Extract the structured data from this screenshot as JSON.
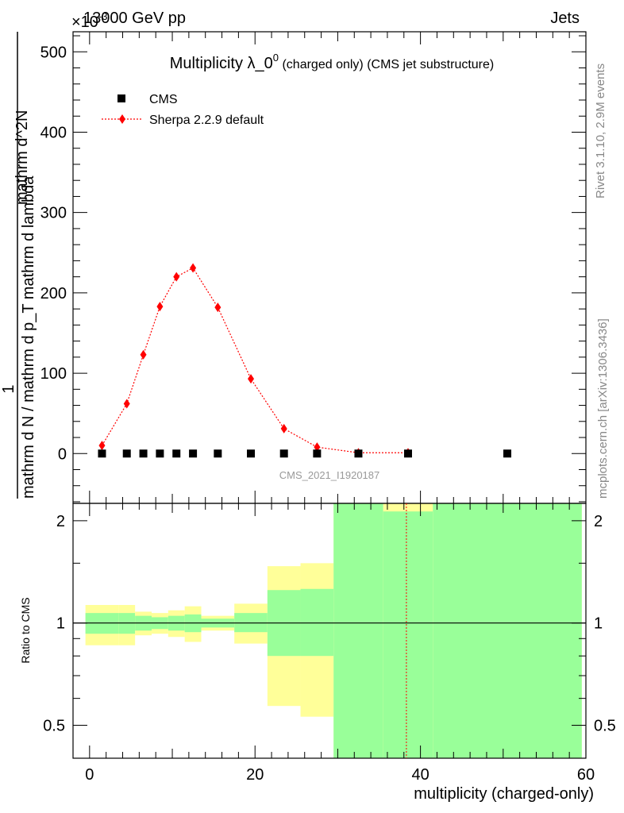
{
  "header": {
    "left": "13000 GeV pp",
    "right": "Jets",
    "exponent_label": "×10",
    "exponent_power": "-3"
  },
  "side_labels": {
    "rivet": "Rivet 3.1.10,  2.9M events",
    "mcplots": "mcplots.cern.ch [arXiv:1306.3436]"
  },
  "chart_data": [
    {
      "type": "scatter",
      "title": "Multiplicity λ_0",
      "title_superscript": "0",
      "title_suffix": " (charged only) (CMS jet substructure)",
      "ylabel_top": "1",
      "ylabel_denominator": "mathrm d N / mathrm d p_T mathrm d lambda",
      "ylabel_numerator": "mathrm d^2N",
      "watermark": "CMS_2021_I1920187",
      "xlim": [
        -2,
        60
      ],
      "ylim": [
        -62,
        525
      ],
      "yticks": [
        0,
        100,
        200,
        300,
        400,
        500
      ],
      "legend_position": "top-left",
      "series": [
        {
          "name": "CMS",
          "color": "#000000",
          "marker": "square",
          "x": [
            1.5,
            4.5,
            6.5,
            8.5,
            10.5,
            12.5,
            15.5,
            19.5,
            23.5,
            27.5,
            32.5,
            38.5,
            50.5
          ],
          "y": [
            0,
            0,
            0,
            0,
            0,
            0,
            0,
            0,
            0,
            0,
            0,
            0,
            0
          ]
        },
        {
          "name": "Sherpa 2.2.9 default",
          "color": "#ff0000",
          "marker": "diamond",
          "x": [
            1.5,
            4.5,
            6.5,
            8.5,
            10.5,
            12.5,
            15.5,
            19.5,
            23.5,
            27.5,
            32.5,
            38.5
          ],
          "y": [
            10,
            62,
            123,
            183,
            220,
            231,
            182,
            93,
            31,
            8,
            1,
            1
          ]
        }
      ]
    },
    {
      "type": "area",
      "ylabel": "Ratio to CMS",
      "xlabel": "multiplicity (charged-only)",
      "xlim": [
        -2,
        60
      ],
      "xticks": [
        0,
        20,
        40,
        60
      ],
      "ylim": [
        0.4,
        2.25
      ],
      "yticks": [
        0.5,
        1,
        2
      ],
      "bins": [
        {
          "lo": -0.5,
          "hi": 3.5,
          "green": [
            0.93,
            1.07
          ],
          "yellow": [
            0.86,
            1.13
          ]
        },
        {
          "lo": 3.5,
          "hi": 5.5,
          "green": [
            0.93,
            1.07
          ],
          "yellow": [
            0.86,
            1.13
          ]
        },
        {
          "lo": 5.5,
          "hi": 7.5,
          "green": [
            0.95,
            1.05
          ],
          "yellow": [
            0.92,
            1.08
          ]
        },
        {
          "lo": 7.5,
          "hi": 9.5,
          "green": [
            0.96,
            1.04
          ],
          "yellow": [
            0.93,
            1.07
          ]
        },
        {
          "lo": 9.5,
          "hi": 11.5,
          "green": [
            0.95,
            1.05
          ],
          "yellow": [
            0.91,
            1.09
          ]
        },
        {
          "lo": 11.5,
          "hi": 13.5,
          "green": [
            0.94,
            1.06
          ],
          "yellow": [
            0.88,
            1.12
          ]
        },
        {
          "lo": 13.5,
          "hi": 17.5,
          "green": [
            0.97,
            1.03
          ],
          "yellow": [
            0.95,
            1.05
          ]
        },
        {
          "lo": 17.5,
          "hi": 21.5,
          "green": [
            0.94,
            1.07
          ],
          "yellow": [
            0.87,
            1.14
          ]
        },
        {
          "lo": 21.5,
          "hi": 25.5,
          "green": [
            0.8,
            1.25
          ],
          "yellow": [
            0.57,
            1.47
          ]
        },
        {
          "lo": 25.5,
          "hi": 29.5,
          "green": [
            0.8,
            1.26
          ],
          "yellow": [
            0.53,
            1.5
          ]
        },
        {
          "lo": 29.5,
          "hi": 35.5,
          "green": [
            0.38,
            2.3
          ],
          "yellow": [
            0.38,
            2.3
          ]
        },
        {
          "lo": 35.5,
          "hi": 41.5,
          "green": [
            0.38,
            2.13
          ],
          "yellow": [
            0.38,
            2.3
          ]
        },
        {
          "lo": 41.5,
          "hi": 59.5,
          "green": [
            0.38,
            2.3
          ],
          "yellow": [
            0.38,
            2.3
          ]
        }
      ],
      "reference_line": 1,
      "mc_ratio_line": {
        "x": 38.3,
        "color": "#ff0000"
      }
    }
  ]
}
